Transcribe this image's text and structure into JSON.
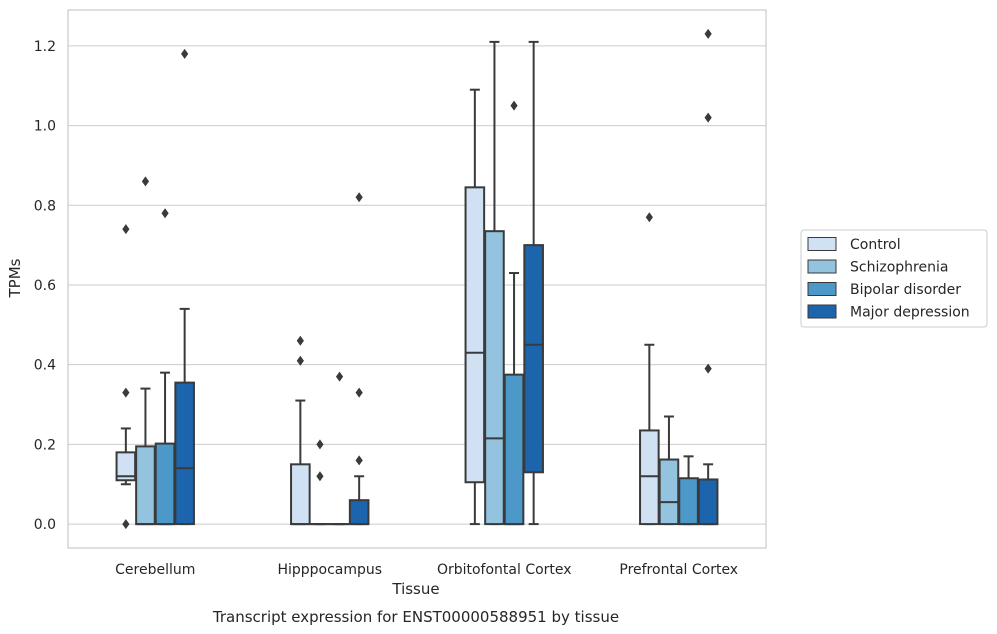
{
  "caption": "Transcript expression for ENST00000588951 by tissue",
  "chart_data": {
    "type": "box",
    "title": "",
    "xlabel": "Tissue",
    "ylabel": "TPMs",
    "ylim": [
      -0.06,
      1.29
    ],
    "yticks": [
      0.0,
      0.2,
      0.4,
      0.6,
      0.8,
      1.0,
      1.2
    ],
    "ytick_labels": [
      "0.0",
      "0.2",
      "0.4",
      "0.6",
      "0.8",
      "1.0",
      "1.2"
    ],
    "grid": "horizontal",
    "legend_position": "right",
    "categories": [
      "Cerebellum",
      "Hipppocampus",
      "Orbitofontal Cortex",
      "Prefrontal Cortex"
    ],
    "series": [
      {
        "name": "Control",
        "color": "#cfe1f2",
        "boxes": [
          {
            "q1": 0.11,
            "median": 0.12,
            "q3": 0.18,
            "whisker_low": 0.1,
            "whisker_high": 0.24,
            "outliers": [
              0.74,
              0.33,
              0.0
            ]
          },
          {
            "q1": 0.0,
            "median": 0.0,
            "q3": 0.15,
            "whisker_low": 0.0,
            "whisker_high": 0.31,
            "outliers": [
              0.46,
              0.41
            ]
          },
          {
            "q1": 0.105,
            "median": 0.43,
            "q3": 0.845,
            "whisker_low": 0.0,
            "whisker_high": 1.09,
            "outliers": []
          },
          {
            "q1": 0.0,
            "median": 0.12,
            "q3": 0.235,
            "whisker_low": 0.0,
            "whisker_high": 0.45,
            "outliers": [
              0.77
            ]
          }
        ]
      },
      {
        "name": "Schizophrenia",
        "color": "#93c3df",
        "boxes": [
          {
            "q1": 0.0,
            "median": 0.0,
            "q3": 0.195,
            "whisker_low": 0.0,
            "whisker_high": 0.34,
            "outliers": [
              0.86
            ]
          },
          {
            "q1": 0.0,
            "median": 0.0,
            "q3": 0.0,
            "whisker_low": 0.0,
            "whisker_high": 0.0,
            "outliers": [
              0.2,
              0.12
            ]
          },
          {
            "q1": 0.0,
            "median": 0.215,
            "q3": 0.735,
            "whisker_low": 0.0,
            "whisker_high": 1.21,
            "outliers": []
          },
          {
            "q1": 0.0,
            "median": 0.055,
            "q3": 0.162,
            "whisker_low": 0.0,
            "whisker_high": 0.27,
            "outliers": []
          }
        ]
      },
      {
        "name": "Bipolar disorder",
        "color": "#4b98c9",
        "boxes": [
          {
            "q1": 0.0,
            "median": 0.0,
            "q3": 0.202,
            "whisker_low": 0.0,
            "whisker_high": 0.38,
            "outliers": [
              0.78
            ]
          },
          {
            "q1": 0.0,
            "median": 0.0,
            "q3": 0.0,
            "whisker_low": 0.0,
            "whisker_high": 0.0,
            "outliers": [
              0.37
            ]
          },
          {
            "q1": 0.0,
            "median": 0.0,
            "q3": 0.375,
            "whisker_low": 0.0,
            "whisker_high": 0.63,
            "outliers": [
              1.05
            ]
          },
          {
            "q1": 0.0,
            "median": 0.0,
            "q3": 0.115,
            "whisker_low": 0.0,
            "whisker_high": 0.17,
            "outliers": []
          }
        ]
      },
      {
        "name": "Major depression",
        "color": "#1c64ab",
        "boxes": [
          {
            "q1": 0.0,
            "median": 0.14,
            "q3": 0.355,
            "whisker_low": 0.0,
            "whisker_high": 0.54,
            "outliers": [
              1.18
            ]
          },
          {
            "q1": 0.0,
            "median": 0.0,
            "q3": 0.06,
            "whisker_low": 0.0,
            "whisker_high": 0.12,
            "outliers": [
              0.82,
              0.33,
              0.16
            ]
          },
          {
            "q1": 0.13,
            "median": 0.45,
            "q3": 0.7,
            "whisker_low": 0.0,
            "whisker_high": 1.21,
            "outliers": []
          },
          {
            "q1": 0.0,
            "median": 0.0,
            "q3": 0.112,
            "whisker_low": 0.0,
            "whisker_high": 0.15,
            "outliers": [
              1.23,
              1.02,
              0.39
            ]
          }
        ]
      }
    ]
  }
}
